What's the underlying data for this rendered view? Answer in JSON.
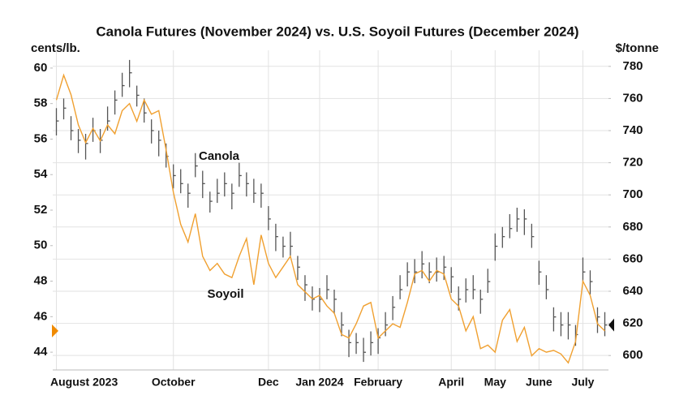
{
  "chart_data": {
    "type": "combo",
    "title": "Canola Futures (November 2024) vs. U.S. Soyoil Futures (December 2024)",
    "ylabel": "cents/lb.",
    "y2label": "$/tonne",
    "categories": [
      "August 2023",
      null,
      null,
      null,
      null,
      null,
      null,
      null,
      null,
      null,
      null,
      null,
      null,
      null,
      null,
      null,
      "October",
      null,
      null,
      null,
      null,
      null,
      null,
      null,
      null,
      null,
      null,
      null,
      null,
      "Dec",
      null,
      null,
      null,
      null,
      null,
      null,
      "Jan 2024",
      null,
      null,
      null,
      null,
      null,
      null,
      null,
      "February",
      null,
      null,
      null,
      null,
      null,
      null,
      null,
      null,
      null,
      "April",
      null,
      null,
      null,
      null,
      null,
      "May",
      null,
      null,
      null,
      null,
      null,
      "June",
      null,
      null,
      null,
      null,
      null,
      "July",
      null,
      null,
      null
    ],
    "ylim": [
      43,
      61
    ],
    "yticks": [
      44,
      46,
      48,
      50,
      52,
      54,
      56,
      58,
      60
    ],
    "y2lim": [
      591,
      790
    ],
    "y2ticks": [
      600,
      620,
      640,
      660,
      680,
      700,
      720,
      740,
      760,
      780
    ],
    "grid": true,
    "series": [
      {
        "name": "Canola",
        "type": "ohlc",
        "axis": "y2",
        "color": "#555555",
        "high": [
          754,
          760,
          749,
          741,
          738,
          748,
          741,
          755,
          765,
          776,
          784,
          768,
          760,
          747,
          740,
          732,
          719,
          716,
          707,
          726,
          715,
          702,
          710,
          714,
          707,
          720,
          714,
          710,
          707,
          693,
          682,
          674,
          677,
          662,
          650,
          643,
          642,
          650,
          641,
          627,
          616,
          614,
          611,
          615,
          617,
          627,
          637,
          650,
          658,
          660,
          665,
          658,
          661,
          662,
          655,
          643,
          648,
          650,
          641,
          654,
          676,
          680,
          688,
          692,
          691,
          682,
          659,
          650,
          630,
          627,
          627,
          619,
          661,
          653,
          630,
          627
        ],
        "low": [
          737,
          747,
          734,
          726,
          722,
          733,
          726,
          740,
          750,
          761,
          767,
          755,
          745,
          732,
          724,
          717,
          704,
          701,
          692,
          711,
          698,
          689,
          695,
          699,
          691,
          705,
          699,
          695,
          692,
          678,
          665,
          661,
          662,
          647,
          634,
          628,
          627,
          635,
          626,
          612,
          599,
          601,
          596,
          600,
          601,
          612,
          622,
          635,
          643,
          645,
          648,
          645,
          646,
          647,
          639,
          628,
          633,
          635,
          626,
          639,
          659,
          667,
          673,
          677,
          675,
          667,
          644,
          635,
          615,
          612,
          610,
          606,
          646,
          638,
          614,
          612
        ],
        "close": [
          746,
          754,
          740,
          734,
          732,
          740,
          734,
          746,
          759,
          768,
          776,
          762,
          751,
          740,
          734,
          724,
          712,
          707,
          701,
          718,
          707,
          696,
          701,
          707,
          701,
          712,
          707,
          701,
          701,
          685,
          674,
          668,
          668,
          655,
          644,
          635,
          635,
          641,
          635,
          619,
          608,
          608,
          602,
          608,
          611,
          619,
          630,
          641,
          652,
          652,
          657,
          652,
          652,
          655,
          649,
          635,
          641,
          641,
          635,
          646,
          668,
          674,
          679,
          685,
          685,
          674,
          652,
          641,
          624,
          619,
          619,
          613,
          652,
          646,
          624,
          619
        ]
      },
      {
        "name": "Soyoil",
        "type": "line",
        "axis": "y",
        "color": "#f0a030",
        "values": [
          58.2,
          59.6,
          58.5,
          56.8,
          55.8,
          56.6,
          55.9,
          56.8,
          56.3,
          57.6,
          58.0,
          57.0,
          58.2,
          57.4,
          57.6,
          55.4,
          53.0,
          51.2,
          50.2,
          51.8,
          49.4,
          48.6,
          49.0,
          48.4,
          48.2,
          49.4,
          50.4,
          47.8,
          50.6,
          49.0,
          48.2,
          48.8,
          49.4,
          47.8,
          47.4,
          47.0,
          47.2,
          46.6,
          46.2,
          45.0,
          44.8,
          45.6,
          46.6,
          46.8,
          44.8,
          45.2,
          45.6,
          45.4,
          46.8,
          48.4,
          48.6,
          48.0,
          48.6,
          48.4,
          47.0,
          46.6,
          45.2,
          46.0,
          44.2,
          44.4,
          44.0,
          45.8,
          46.4,
          44.6,
          45.4,
          43.8,
          44.2,
          44.0,
          44.1,
          43.9,
          43.4,
          44.6,
          48.0,
          47.2,
          45.6,
          45.2
        ]
      }
    ]
  }
}
